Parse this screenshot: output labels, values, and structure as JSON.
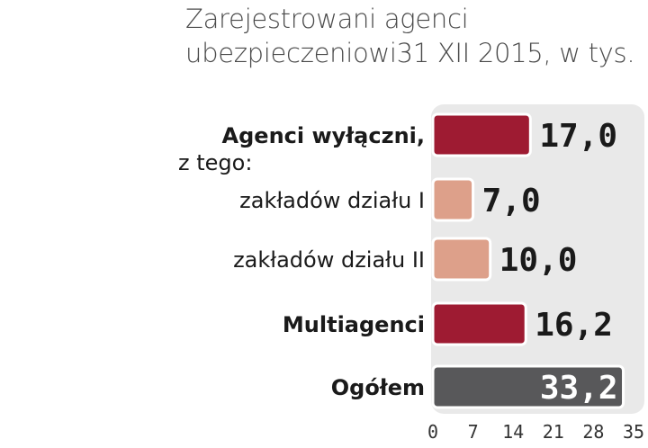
{
  "title_lines": [
    "Zarejestrowani agenci",
    "ubezpieczeniowi31 XII 2015, w tys."
  ],
  "chart_data": {
    "type": "bar",
    "orientation": "horizontal",
    "title": "Zarejestrowani agenci ubezpieczeniowi31 XII 2015, w tys.",
    "categories": [
      {
        "label": [
          "Agenci wyłączni,",
          "z tego:"
        ],
        "bold": true
      },
      {
        "label": [
          "zakładów działu I"
        ],
        "bold": false
      },
      {
        "label": [
          "zakładów działu II"
        ],
        "bold": false
      },
      {
        "label": [
          "Multiagenci"
        ],
        "bold": true
      },
      {
        "label": [
          "Ogółem"
        ],
        "bold": true
      }
    ],
    "values": [
      17.0,
      7.0,
      10.0,
      16.2,
      33.2
    ],
    "value_labels": [
      "17,0",
      "7,0",
      "10,0",
      "16,2",
      "33,2"
    ],
    "bar_colors": [
      "#9e1b32",
      "#dda08a",
      "#dda08a",
      "#9e1b32",
      "#58585a"
    ],
    "xlim": [
      0,
      35
    ],
    "xticks": [
      0,
      7,
      14,
      21,
      28,
      35
    ],
    "xtick_labels": [
      "0",
      "7",
      "14",
      "21",
      "28",
      "35"
    ],
    "grid": false,
    "background_color": "#e9e9e9"
  }
}
